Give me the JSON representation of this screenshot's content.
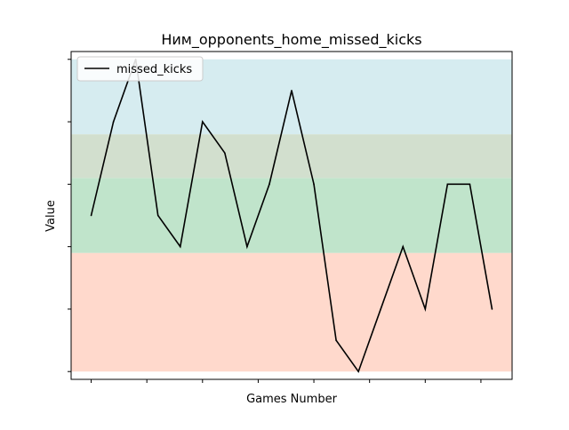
{
  "chart_data": {
    "type": "line",
    "title": "Ним_opponents_home_missed_kicks",
    "xlabel": "Games Number",
    "ylabel": "Value",
    "x": [
      1,
      2,
      3,
      4,
      5,
      6,
      7,
      8,
      9,
      10,
      11,
      12,
      13,
      14,
      15,
      16,
      17,
      18,
      19
    ],
    "xlim": [
      0.1,
      19.9
    ],
    "ylim": [
      -0.25,
      10.25
    ],
    "series": [
      {
        "name": "missed_kicks",
        "color": "#000000",
        "values": [
          5,
          8,
          10,
          5,
          4,
          8,
          7,
          4,
          6,
          9,
          6,
          1,
          0,
          2,
          4,
          2,
          6,
          6,
          2
        ]
      }
    ],
    "bands": [
      {
        "from": 0,
        "to": 3.8,
        "color": "#ffd9cc"
      },
      {
        "from": 3.8,
        "to": 6.2,
        "color": "#c0e4cb"
      },
      {
        "from": 6.2,
        "to": 7.6,
        "color": "#d2dfce"
      },
      {
        "from": 7.6,
        "to": 10,
        "color": "#d6ecf0"
      }
    ],
    "x_ticks": [
      1,
      3.5,
      6,
      8.5,
      11,
      13.5,
      16,
      18.5
    ],
    "y_ticks": [
      0,
      2,
      4,
      6,
      8,
      10
    ],
    "tick_labels_visible": false,
    "grid": false,
    "legend_position": "top-left"
  }
}
